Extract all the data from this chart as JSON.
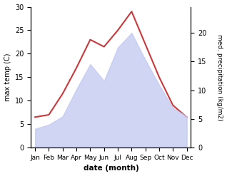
{
  "months": [
    "Jan",
    "Feb",
    "Mar",
    "Apr",
    "May",
    "Jun",
    "Jul",
    "Aug",
    "Sep",
    "Oct",
    "Nov",
    "Dec"
  ],
  "temp": [
    6.5,
    7.0,
    11.5,
    17.0,
    23.0,
    21.5,
    25.0,
    29.0,
    22.0,
    15.0,
    9.0,
    6.5
  ],
  "precip": [
    4.5,
    5.5,
    7.5,
    14.0,
    20.0,
    16.0,
    24.0,
    27.5,
    21.0,
    15.0,
    9.5,
    7.5
  ],
  "temp_color": "#c9393b",
  "precip_fill_color": "#c0c8f0",
  "precip_fill_alpha": 0.75,
  "temp_ylim": [
    0,
    30
  ],
  "temp_yticks": [
    0,
    5,
    10,
    15,
    20,
    25,
    30
  ],
  "precip_data_ylim": [
    0,
    33.75
  ],
  "precip_display_yticks": [
    0,
    5,
    10,
    15,
    20
  ],
  "precip_display_ylim": [
    0,
    20
  ],
  "ylabel_left": "max temp (C)",
  "ylabel_right": "med. precipitation (kg/m2)",
  "xlabel": "date (month)",
  "figsize": [
    3.18,
    2.47
  ],
  "dpi": 100
}
